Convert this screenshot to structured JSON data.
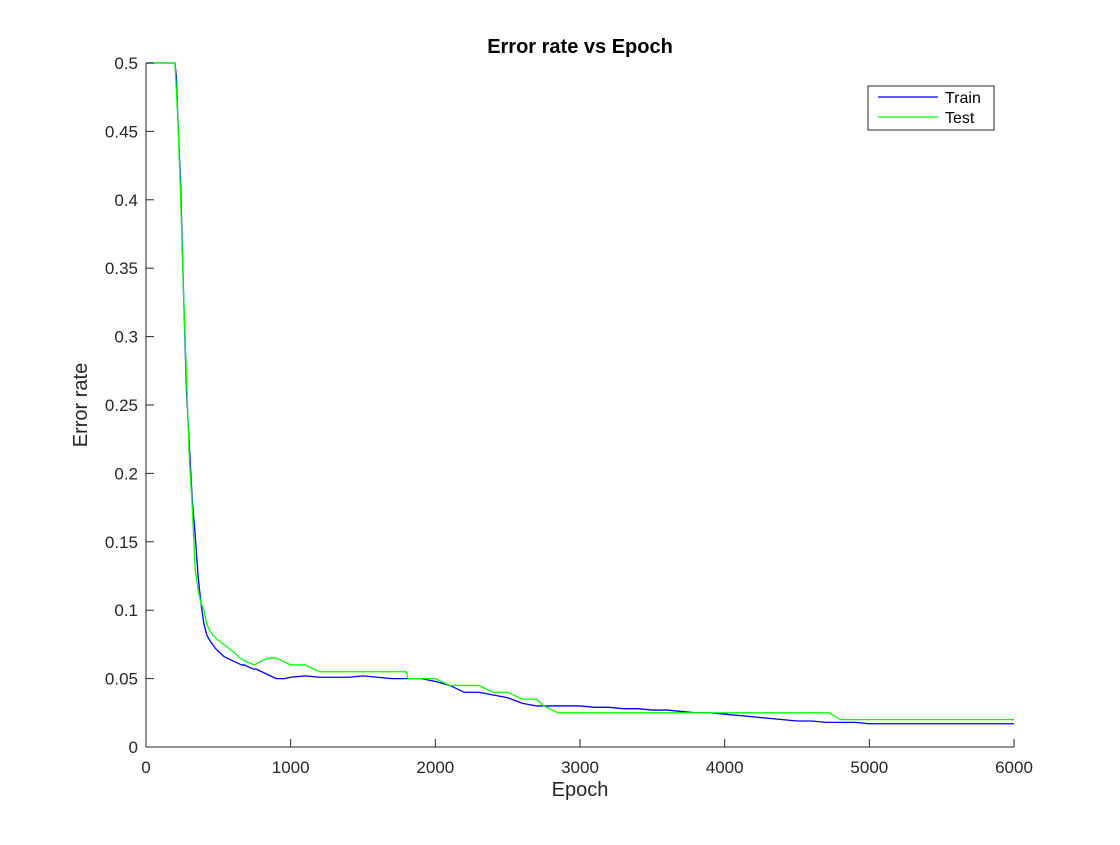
{
  "chart_data": {
    "type": "line",
    "title": "Error rate vs Epoch",
    "xlabel": "Epoch",
    "ylabel": "Error rate",
    "xlim": [
      0,
      6000
    ],
    "ylim": [
      0,
      0.5
    ],
    "xticks": [
      0,
      1000,
      2000,
      3000,
      4000,
      5000,
      6000
    ],
    "yticks": [
      0,
      0.05,
      0.1,
      0.15,
      0.2,
      0.25,
      0.3,
      0.35,
      0.4,
      0.45,
      0.5
    ],
    "grid": false,
    "legend_position": "top-right",
    "series": [
      {
        "name": "Train",
        "color": "#0000ff",
        "x": [
          0,
          200,
          210,
          220,
          240,
          260,
          280,
          300,
          320,
          340,
          360,
          380,
          400,
          420,
          440,
          460,
          480,
          500,
          520,
          540,
          560,
          580,
          600,
          620,
          640,
          660,
          680,
          700,
          720,
          740,
          760,
          780,
          800,
          820,
          840,
          860,
          880,
          900,
          920,
          940,
          960,
          1000,
          1100,
          1200,
          1300,
          1400,
          1500,
          1600,
          1700,
          1800,
          1900,
          2000,
          2100,
          2200,
          2300,
          2400,
          2500,
          2600,
          2700,
          2800,
          2900,
          3000,
          3100,
          3200,
          3300,
          3400,
          3500,
          3600,
          3700,
          3800,
          3900,
          4000,
          4100,
          4200,
          4300,
          4400,
          4500,
          4600,
          4700,
          4800,
          4900,
          5000,
          5200,
          5400,
          5600,
          5800,
          6000
        ],
        "y": [
          0.5,
          0.5,
          0.49,
          0.46,
          0.41,
          0.33,
          0.26,
          0.22,
          0.18,
          0.155,
          0.125,
          0.105,
          0.09,
          0.082,
          0.078,
          0.075,
          0.072,
          0.07,
          0.068,
          0.066,
          0.065,
          0.064,
          0.063,
          0.062,
          0.061,
          0.06,
          0.06,
          0.059,
          0.058,
          0.057,
          0.057,
          0.056,
          0.055,
          0.054,
          0.053,
          0.052,
          0.051,
          0.05,
          0.05,
          0.05,
          0.05,
          0.051,
          0.052,
          0.051,
          0.051,
          0.051,
          0.052,
          0.051,
          0.05,
          0.05,
          0.05,
          0.048,
          0.045,
          0.04,
          0.04,
          0.038,
          0.036,
          0.032,
          0.03,
          0.03,
          0.03,
          0.03,
          0.029,
          0.029,
          0.028,
          0.028,
          0.027,
          0.027,
          0.026,
          0.025,
          0.025,
          0.024,
          0.023,
          0.022,
          0.021,
          0.02,
          0.019,
          0.019,
          0.018,
          0.018,
          0.018,
          0.017,
          0.017,
          0.017,
          0.017,
          0.017,
          0.017
        ]
      },
      {
        "name": "Test",
        "color": "#00ff00",
        "x": [
          0,
          200,
          210,
          220,
          240,
          260,
          280,
          300,
          320,
          340,
          360,
          380,
          400,
          420,
          440,
          460,
          480,
          500,
          550,
          600,
          650,
          700,
          750,
          800,
          850,
          900,
          1000,
          1100,
          1200,
          1400,
          1600,
          1800,
          1810,
          2000,
          2100,
          2300,
          2400,
          2500,
          2600,
          2700,
          2750,
          2850,
          3000,
          3300,
          3500,
          3700,
          4000,
          4500,
          4720,
          4800,
          5000,
          5500,
          6000
        ],
        "y": [
          0.5,
          0.5,
          0.48,
          0.46,
          0.4,
          0.33,
          0.27,
          0.21,
          0.175,
          0.13,
          0.115,
          0.105,
          0.1,
          0.09,
          0.085,
          0.082,
          0.08,
          0.078,
          0.074,
          0.07,
          0.065,
          0.062,
          0.06,
          0.063,
          0.065,
          0.065,
          0.06,
          0.06,
          0.055,
          0.055,
          0.055,
          0.055,
          0.05,
          0.05,
          0.045,
          0.045,
          0.04,
          0.04,
          0.035,
          0.035,
          0.03,
          0.025,
          0.025,
          0.025,
          0.025,
          0.025,
          0.025,
          0.025,
          0.025,
          0.02,
          0.02,
          0.02,
          0.02
        ]
      }
    ]
  }
}
